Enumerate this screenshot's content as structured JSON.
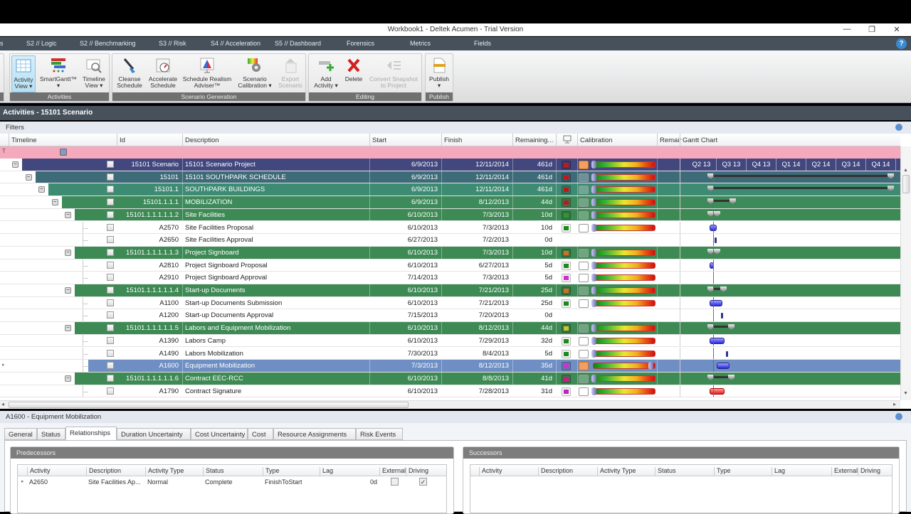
{
  "window": {
    "title": "Workbook1 - Deltek Acumen - Trial Version",
    "min": "—",
    "max": "❐",
    "close": "✕"
  },
  "menu": {
    "items": [
      "S2 // Logic",
      "S2 // Benchmarking",
      "S3 // Risk",
      "S4 // Acceleration",
      "S5 // Dashboard",
      "Forensics",
      "Metrics",
      "Fields"
    ],
    "help": "?"
  },
  "ribbon": {
    "groups": [
      {
        "label": "Activities",
        "buttons": [
          {
            "label": "Activity\nView ▾"
          },
          {
            "label": "SmartGantt™\n▾"
          },
          {
            "label": "Timeline\nView ▾"
          }
        ]
      },
      {
        "label": "Scenario Generation",
        "buttons": [
          {
            "label": "Cleanse\nSchedule"
          },
          {
            "label": "Accelerate\nSchedule"
          },
          {
            "label": "Schedule Realism\nAdviser™"
          },
          {
            "label": "Scenario\nCalibration ▾"
          },
          {
            "label": "Export\nScenario"
          }
        ]
      },
      {
        "label": "Editing",
        "buttons": [
          {
            "label": "Add\nActivity ▾"
          },
          {
            "label": "Delete"
          },
          {
            "label": "Convert Snapshot\nto Project"
          }
        ]
      },
      {
        "label": "Publish",
        "buttons": [
          {
            "label": "Publish\n▾"
          }
        ]
      }
    ]
  },
  "activities": {
    "title": "Activities - 15101 Scenario",
    "filters_label": "Filters",
    "columns": {
      "timeline": "Timeline",
      "id": "Id",
      "description": "Description",
      "start": "Start",
      "finish": "Finish",
      "remaining": "Remaining...",
      "calibration": "Calibration",
      "remain2": "Remair",
      "gantt": "Gantt Chart"
    },
    "quarters": [
      "Q2 13",
      "Q3 13",
      "Q4 13",
      "Q1 14",
      "Q2 14",
      "Q3 14",
      "Q4 14"
    ],
    "rows": [
      {
        "id": "15101 Scenario",
        "description": "15101 Scenario Project",
        "start": "6/9/2013",
        "finish": "12/11/2014",
        "remaining": "461d"
      },
      {
        "id": "15101",
        "description": "15101 SOUTHPARK SCHEDULE",
        "start": "6/9/2013",
        "finish": "12/11/2014",
        "remaining": "461d"
      },
      {
        "id": "15101.1",
        "description": "SOUTHPARK BUILDINGS",
        "start": "6/9/2013",
        "finish": "12/11/2014",
        "remaining": "461d"
      },
      {
        "id": "15101.1.1.1",
        "description": "MOBILIZATION",
        "start": "6/9/2013",
        "finish": "8/12/2013",
        "remaining": "44d"
      },
      {
        "id": "15101.1.1.1.1.1.2",
        "description": "Site Facilities",
        "start": "6/10/2013",
        "finish": "7/3/2013",
        "remaining": "10d"
      },
      {
        "id": "A2570",
        "description": "Site Facilities Proposal",
        "start": "6/10/2013",
        "finish": "7/3/2013",
        "remaining": "10d"
      },
      {
        "id": "A2650",
        "description": "Site Facilities Approval",
        "start": "6/27/2013",
        "finish": "7/2/2013",
        "remaining": "0d"
      },
      {
        "id": "15101.1.1.1.1.1.3",
        "description": "Project Signboard",
        "start": "6/10/2013",
        "finish": "7/3/2013",
        "remaining": "10d"
      },
      {
        "id": "A2810",
        "description": "Project Signboard Proposal",
        "start": "6/10/2013",
        "finish": "6/27/2013",
        "remaining": "5d"
      },
      {
        "id": "A2910",
        "description": "Project Signboard Approval",
        "start": "7/14/2013",
        "finish": "7/3/2013",
        "remaining": "5d"
      },
      {
        "id": "15101.1.1.1.1.1.4",
        "description": "Start-up Documents",
        "start": "6/10/2013",
        "finish": "7/21/2013",
        "remaining": "25d"
      },
      {
        "id": "A1100",
        "description": "Start-up Documents Submission",
        "start": "6/10/2013",
        "finish": "7/21/2013",
        "remaining": "25d"
      },
      {
        "id": "A1200",
        "description": "Start-up Documents Approval",
        "start": "7/15/2013",
        "finish": "7/20/2013",
        "remaining": "0d"
      },
      {
        "id": "15101.1.1.1.1.1.5",
        "description": "Labors and Equipment Mobilization",
        "start": "6/10/2013",
        "finish": "8/12/2013",
        "remaining": "44d"
      },
      {
        "id": "A1390",
        "description": "Labors Camp",
        "start": "6/10/2013",
        "finish": "7/29/2013",
        "remaining": "32d"
      },
      {
        "id": "A1490",
        "description": "Labors Mobilization",
        "start": "7/30/2013",
        "finish": "8/4/2013",
        "remaining": "5d"
      },
      {
        "id": "A1600",
        "description": "Equipment Mobilization",
        "start": "7/3/2013",
        "finish": "8/12/2013",
        "remaining": "35d"
      },
      {
        "id": "15101.1.1.1.1.1.6",
        "description": "Contract EEC-RCC",
        "start": "6/10/2013",
        "finish": "8/8/2013",
        "remaining": "41d"
      },
      {
        "id": "A1790",
        "description": "Contract Signature",
        "start": "6/10/2013",
        "finish": "7/28/2013",
        "remaining": "31d"
      }
    ]
  },
  "detail": {
    "title": "A1600 - Equipment Mobilization",
    "tabs": [
      "General",
      "Status",
      "Relationships",
      "Duration Uncertainty",
      "Cost Uncertainty",
      "Cost",
      "Resource Assignments",
      "Risk Events"
    ],
    "active_tab": "Relationships",
    "predecessors": {
      "title": "Predecessors",
      "columns": [
        "Activity",
        "Description",
        "Activity Type",
        "Status",
        "Type",
        "Lag",
        "External",
        "Driving"
      ],
      "rows": [
        {
          "activity": "A2650",
          "description": "Site Facilities Ap...",
          "activity_type": "Normal",
          "status": "Complete",
          "type": "FinishToStart",
          "lag": "0d",
          "external": "☐",
          "driving": "✓"
        }
      ]
    },
    "successors": {
      "title": "Successors",
      "columns": [
        "Activity",
        "Description",
        "Activity Type",
        "Status",
        "Type",
        "Lag",
        "External",
        "Driving"
      ],
      "rows": []
    }
  }
}
